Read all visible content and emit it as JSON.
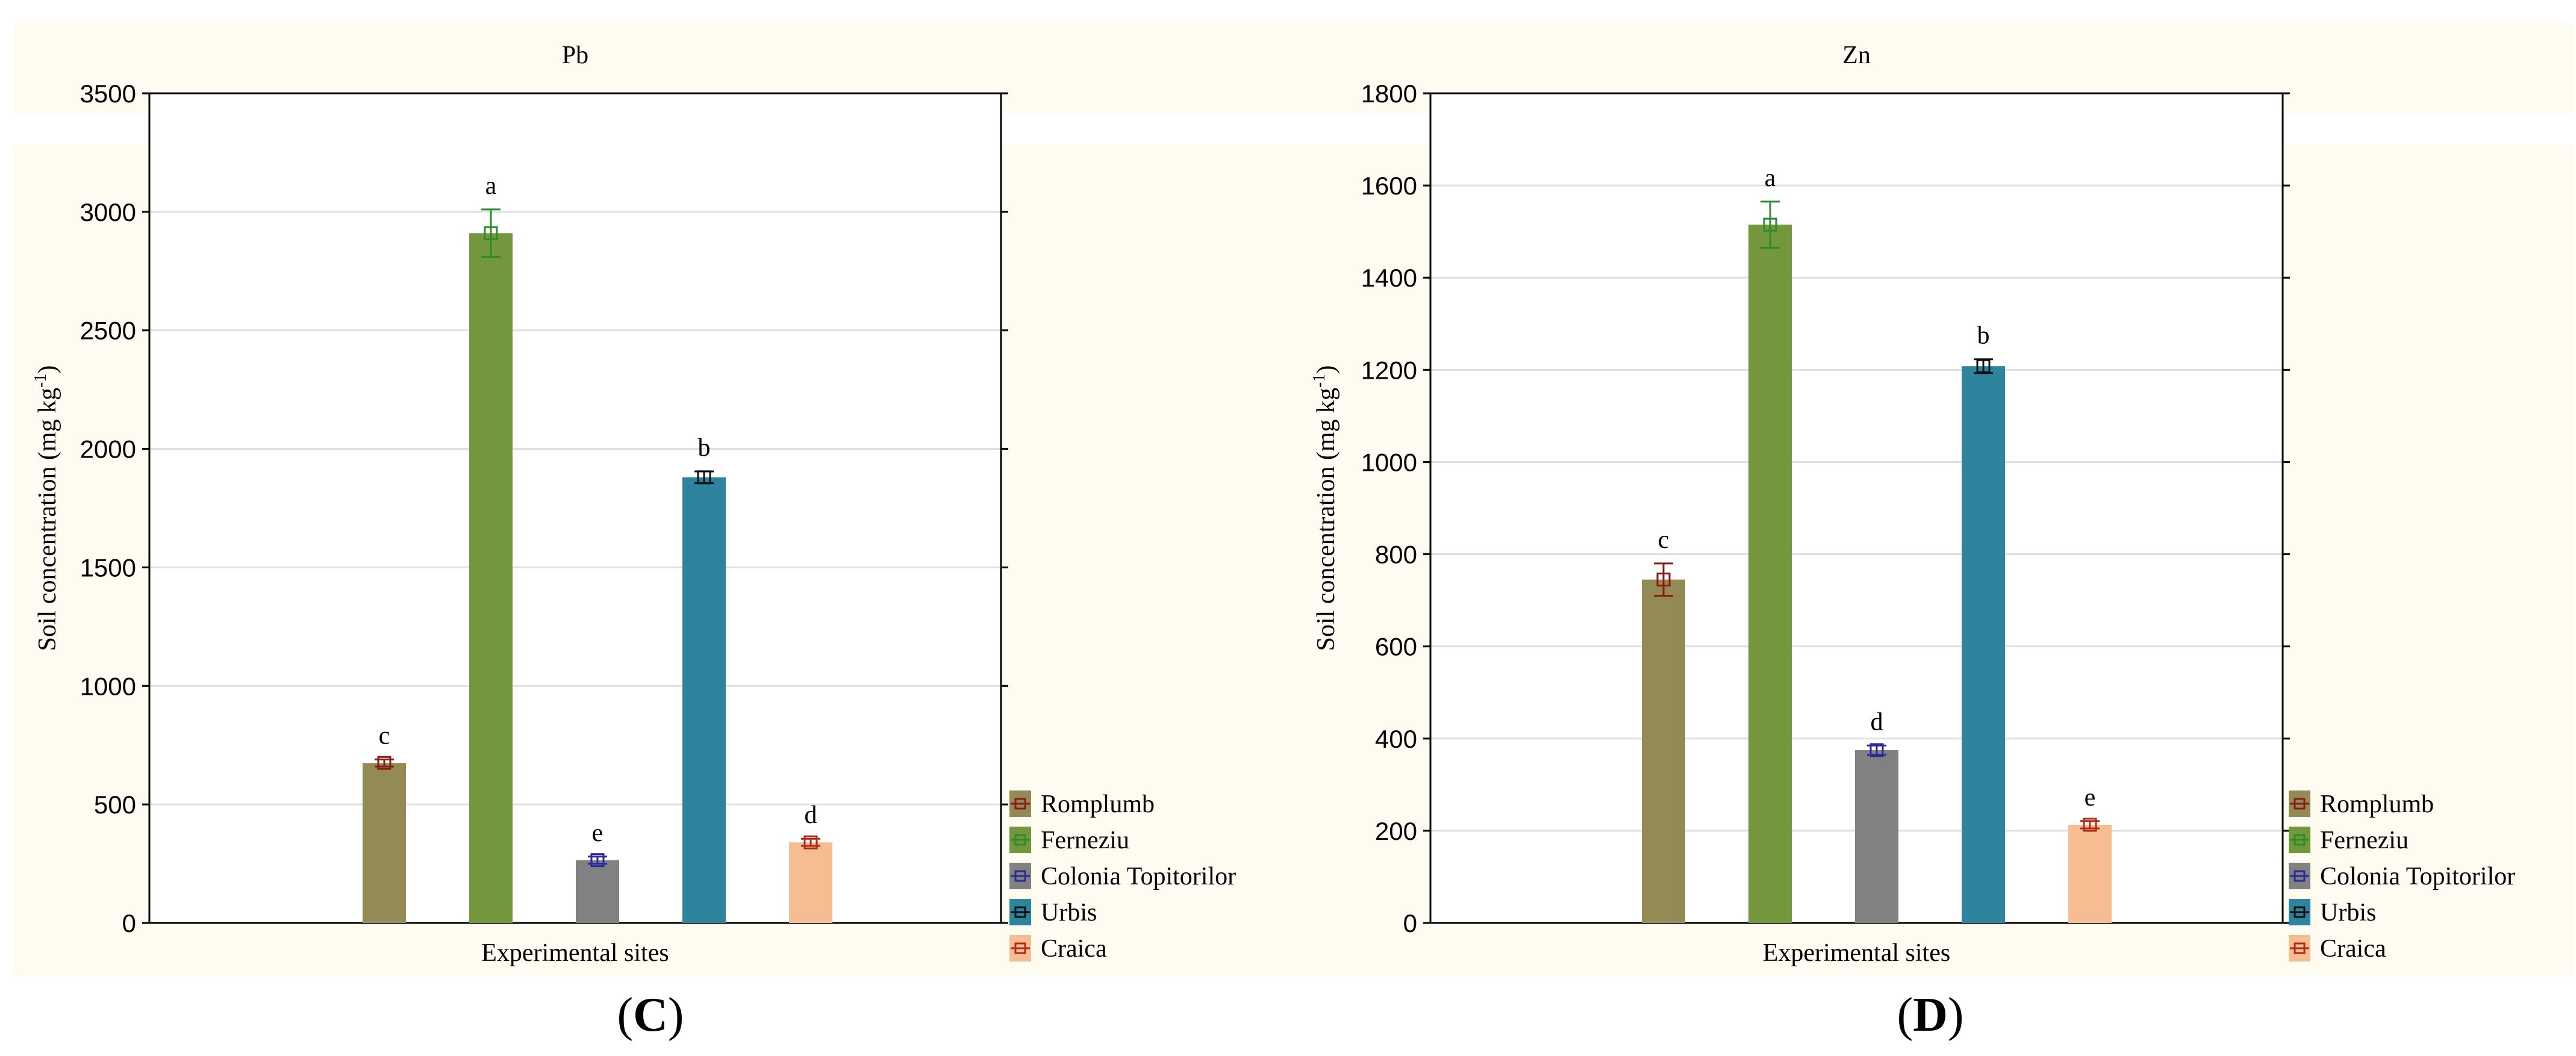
{
  "colors": {
    "panel_bg": "#fefbf0",
    "grid": "#e0e0e0",
    "axis": "#000000"
  },
  "legend_labels": [
    "Romplumb",
    "Ferneziu",
    "Colonia Topitorilor",
    "Urbis",
    "Craica"
  ],
  "series_colors": {
    "bar": [
      "#938a55",
      "#74963c",
      "#818181",
      "#2f849d",
      "#f7bd92"
    ],
    "err": [
      "#8b1a1a",
      "#2a8c2a",
      "#2a2a9c",
      "#101010",
      "#b02a1a"
    ]
  },
  "chart_data": [
    {
      "type": "bar",
      "title": "Pb",
      "panel_label": "C",
      "xlabel": "Experimental sites",
      "ylabel_main": "Soil concentration (mg kg",
      "ylabel_sup": "-1",
      "ylabel_close": ")",
      "ylim": [
        0,
        3500
      ],
      "yticks": [
        0,
        500,
        1000,
        1500,
        2000,
        2500,
        3000,
        3500
      ],
      "categories": [
        "Romplumb",
        "Ferneziu",
        "Colonia Topitorilor",
        "Urbis",
        "Craica"
      ],
      "values": [
        675,
        2910,
        265,
        1880,
        340
      ],
      "errors": [
        15,
        100,
        15,
        25,
        15
      ],
      "letters": [
        "c",
        "a",
        "e",
        "b",
        "d"
      ]
    },
    {
      "type": "bar",
      "title": "Zn",
      "panel_label": "D",
      "xlabel": "Experimental sites",
      "ylabel_main": "Soil concentration (mg kg",
      "ylabel_sup": "-1",
      "ylabel_close": ")",
      "ylim": [
        0,
        1800
      ],
      "yticks": [
        0,
        200,
        400,
        600,
        800,
        1000,
        1200,
        1400,
        1600,
        1800
      ],
      "categories": [
        "Romplumb",
        "Ferneziu",
        "Colonia Topitorilor",
        "Urbis",
        "Craica"
      ],
      "values": [
        745,
        1515,
        375,
        1208,
        213
      ],
      "errors": [
        35,
        50,
        10,
        15,
        8
      ],
      "letters": [
        "c",
        "a",
        "d",
        "b",
        "e"
      ]
    }
  ]
}
